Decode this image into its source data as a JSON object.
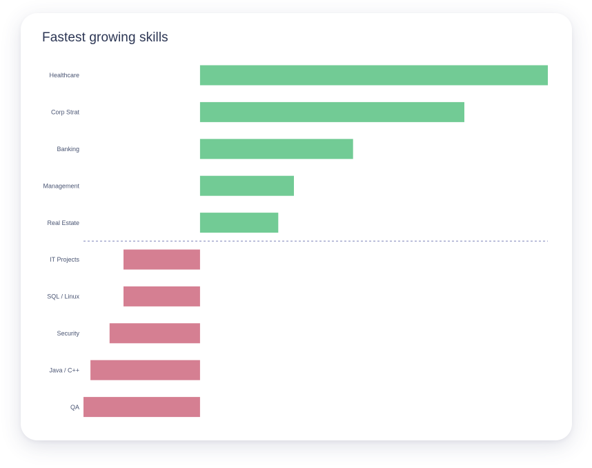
{
  "card": {
    "title": "Fastest growing skills"
  },
  "colors": {
    "positive": "#72cb95",
    "negative": "#d57f92",
    "divider": "#7d83b8",
    "label": "#4a5573"
  },
  "chart_data": {
    "type": "bar",
    "orientation": "horizontal",
    "title": "Fastest growing skills",
    "xlabel": "",
    "ylabel": "",
    "grid": false,
    "categories": [
      "Healthcare",
      "Corp Strat",
      "Banking",
      "Management",
      "Real Estate",
      "IT Projects",
      "SQL / Linux",
      "Security",
      "Java / C++",
      "QA"
    ],
    "values": [
      100,
      76,
      44,
      27,
      22.5,
      -22,
      -22,
      -26,
      -31.5,
      -33.5
    ],
    "xlim": [
      -33.5,
      100
    ],
    "divider_after_index": 4
  }
}
